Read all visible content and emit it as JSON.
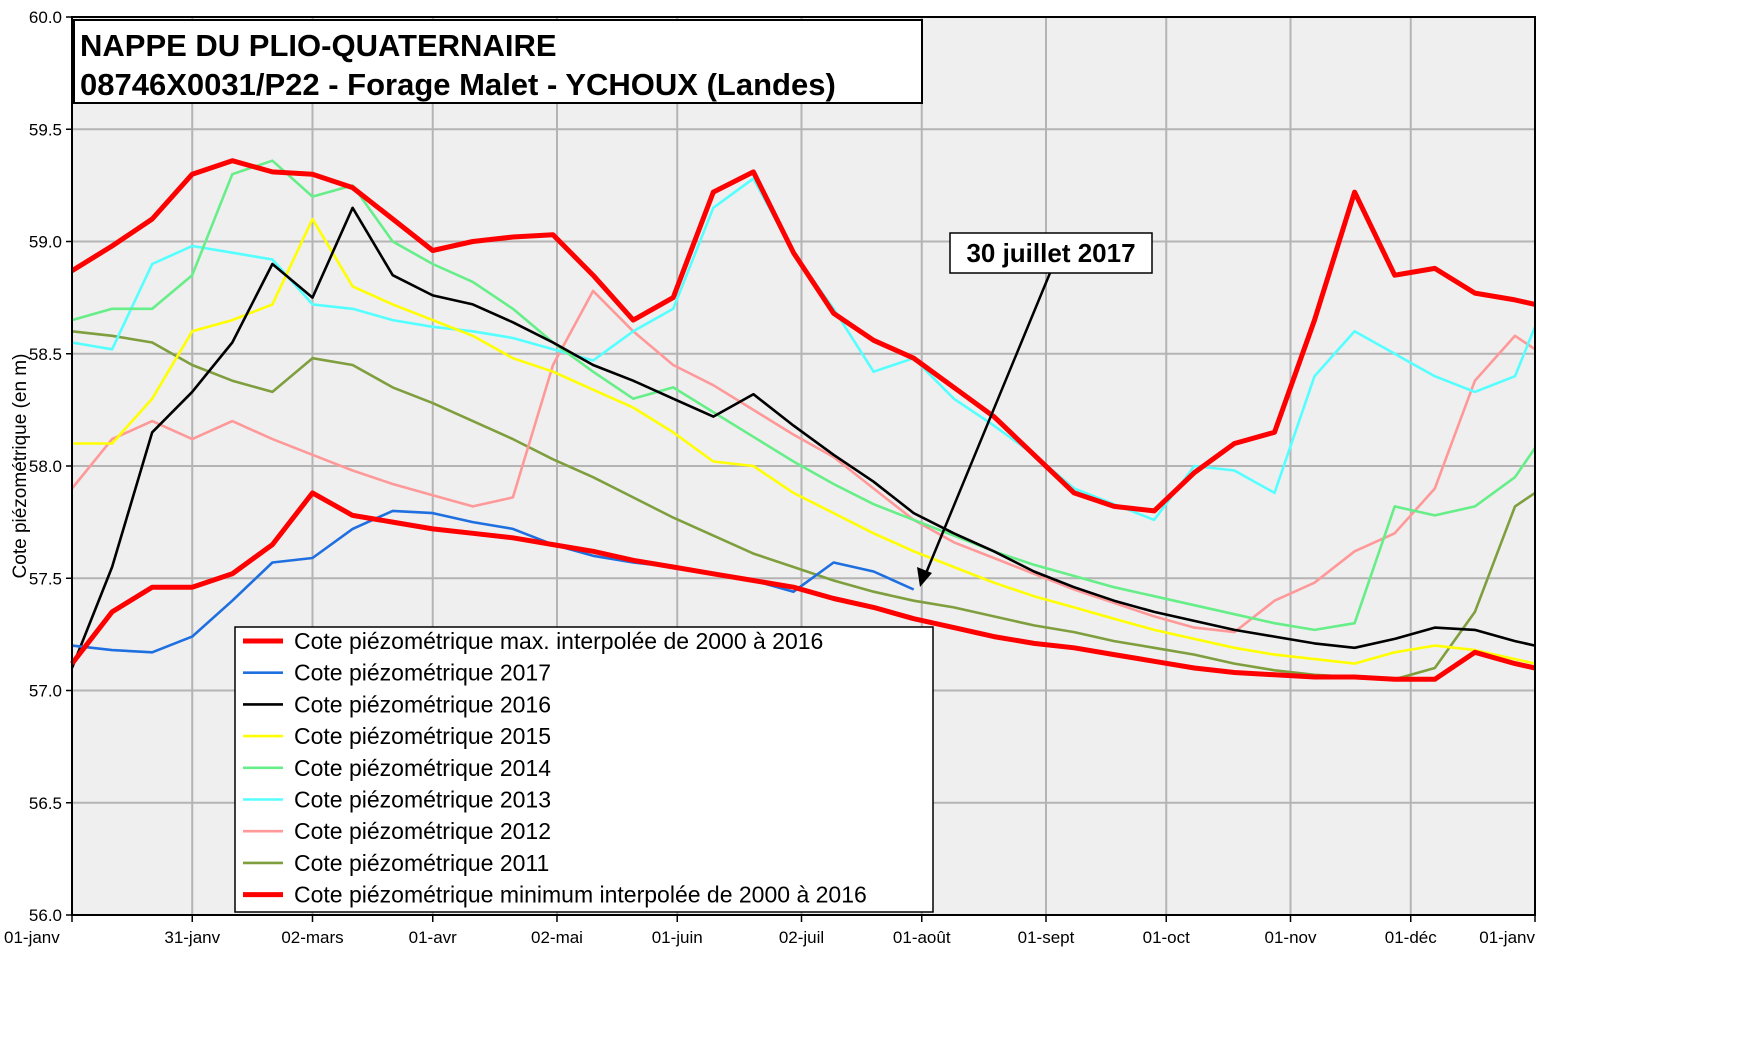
{
  "chart_data": {
    "type": "line",
    "title": "NAPPE DU PLIO-QUATERNAIRE",
    "subtitle": "08746X0031/P22  - Forage Malet - YCHOUX (Landes)",
    "y_label": "Cote piézométrique  (en m)",
    "annotation": "30 juillet 2017",
    "grid": true,
    "xlim": [
      0,
      365
    ],
    "ylim": [
      56,
      60
    ],
    "xticks": [
      {
        "value": 0,
        "label": "01-janv"
      },
      {
        "value": 30,
        "label": "31-janv"
      },
      {
        "value": 60,
        "label": "02-mars"
      },
      {
        "value": 90,
        "label": "01-avr"
      },
      {
        "value": 121,
        "label": "02-mai"
      },
      {
        "value": 151,
        "label": "01-juin"
      },
      {
        "value": 182,
        "label": "02-juil"
      },
      {
        "value": 212,
        "label": "01-août"
      },
      {
        "value": 243,
        "label": "01-sept"
      },
      {
        "value": 273,
        "label": "01-oct"
      },
      {
        "value": 304,
        "label": "01-nov"
      },
      {
        "value": 334,
        "label": "01-déc"
      },
      {
        "value": 365,
        "label": "01-janv"
      }
    ],
    "yticks": [
      {
        "value": 56,
        "label": "56.0"
      },
      {
        "value": 56.5,
        "label": "56.5"
      },
      {
        "value": 57,
        "label": "57.0"
      },
      {
        "value": 57.5,
        "label": "57.5"
      },
      {
        "value": 58,
        "label": "58.0"
      },
      {
        "value": 58.5,
        "label": "58.5"
      },
      {
        "value": 59,
        "label": "59.0"
      },
      {
        "value": 59.5,
        "label": "59.5"
      },
      {
        "value": 60,
        "label": "60.0"
      }
    ],
    "x": [
      0,
      10,
      20,
      30,
      40,
      50,
      60,
      70,
      80,
      90,
      100,
      110,
      120,
      130,
      140,
      150,
      160,
      170,
      180,
      190,
      200,
      210,
      220,
      230,
      240,
      250,
      260,
      270,
      280,
      290,
      300,
      310,
      320,
      330,
      340,
      350,
      360,
      365
    ],
    "series": [
      {
        "name": "Cote piézométrique max. interpolée de 2000 à 2016",
        "color": "#ff0000",
        "values": [
          58.87,
          58.98,
          59.1,
          59.3,
          59.36,
          59.31,
          59.3,
          59.24,
          59.1,
          58.96,
          59.0,
          59.02,
          59.03,
          58.85,
          58.65,
          58.75,
          59.22,
          59.31,
          58.95,
          58.68,
          58.56,
          58.48,
          58.35,
          58.22,
          58.05,
          57.88,
          57.82,
          57.8,
          57.97,
          58.1,
          58.15,
          58.65,
          59.22,
          58.85,
          58.88,
          58.77,
          58.74,
          58.72
        ]
      },
      {
        "name": "Cote piézométrique 2017",
        "color": "#1e6fe0",
        "values": [
          57.2,
          57.18,
          57.17,
          57.24,
          57.4,
          57.57,
          57.59,
          57.72,
          57.8,
          57.79,
          57.75,
          57.72,
          57.65,
          57.6,
          57.57,
          57.55,
          57.52,
          57.49,
          57.44,
          57.57,
          57.53,
          57.45,
          null,
          null,
          null,
          null,
          null,
          null,
          null,
          null,
          null,
          null,
          null,
          null,
          null,
          null,
          null,
          null
        ]
      },
      {
        "name": "Cote piézométrique 2016",
        "color": "#000000",
        "values": [
          57.1,
          57.55,
          58.15,
          58.33,
          58.55,
          58.9,
          58.75,
          59.15,
          58.85,
          58.76,
          58.72,
          58.64,
          58.55,
          58.45,
          58.38,
          58.3,
          58.22,
          58.32,
          58.18,
          58.05,
          57.93,
          57.79,
          57.7,
          57.62,
          57.53,
          57.46,
          57.4,
          57.35,
          57.31,
          57.27,
          57.24,
          57.21,
          57.19,
          57.23,
          57.28,
          57.27,
          57.22,
          57.2
        ]
      },
      {
        "name": "Cote piézométrique 2015",
        "color": "#ffff00",
        "values": [
          58.1,
          58.1,
          58.3,
          58.6,
          58.65,
          58.72,
          59.1,
          58.8,
          58.72,
          58.65,
          58.58,
          58.48,
          58.42,
          58.34,
          58.26,
          58.15,
          58.02,
          58.0,
          57.88,
          57.79,
          57.7,
          57.62,
          57.55,
          57.48,
          57.42,
          57.37,
          57.32,
          57.27,
          57.23,
          57.19,
          57.16,
          57.14,
          57.12,
          57.17,
          57.2,
          57.18,
          57.14,
          57.12
        ]
      },
      {
        "name": "Cote piézométrique 2014",
        "color": "#66ee88",
        "values": [
          58.65,
          58.7,
          58.7,
          58.85,
          59.3,
          59.36,
          59.2,
          59.25,
          59.0,
          58.9,
          58.82,
          58.7,
          58.55,
          58.42,
          58.3,
          58.35,
          58.24,
          58.13,
          58.02,
          57.92,
          57.83,
          57.76,
          57.69,
          57.62,
          57.56,
          57.51,
          57.46,
          57.42,
          57.38,
          57.34,
          57.3,
          57.27,
          57.3,
          57.82,
          57.78,
          57.82,
          57.95,
          58.08
        ]
      },
      {
        "name": "Cote piézométrique 2013",
        "color": "#55ffff",
        "values": [
          58.55,
          58.52,
          58.9,
          58.98,
          58.95,
          58.92,
          58.72,
          58.7,
          58.65,
          58.62,
          58.6,
          58.57,
          58.52,
          58.47,
          58.6,
          58.7,
          59.15,
          59.28,
          58.95,
          58.7,
          58.42,
          58.48,
          58.3,
          58.18,
          58.05,
          57.9,
          57.83,
          57.76,
          58.0,
          57.98,
          57.88,
          58.4,
          58.6,
          58.5,
          58.4,
          58.33,
          58.4,
          58.62
        ]
      },
      {
        "name": "Cote piézométrique 2012",
        "color": "#ff9999",
        "values": [
          57.9,
          58.12,
          58.2,
          58.12,
          58.2,
          58.12,
          58.05,
          57.98,
          57.92,
          57.87,
          57.82,
          57.86,
          58.45,
          58.78,
          58.6,
          58.45,
          58.36,
          58.25,
          58.14,
          58.04,
          57.9,
          57.76,
          57.66,
          57.59,
          57.52,
          57.45,
          57.39,
          57.33,
          57.28,
          57.26,
          57.4,
          57.48,
          57.62,
          57.7,
          57.9,
          58.38,
          58.58,
          58.52
        ]
      },
      {
        "name": "Cote piézométrique 2011",
        "color": "#7f9f3f",
        "values": [
          58.6,
          58.58,
          58.55,
          58.45,
          58.38,
          58.33,
          58.48,
          58.45,
          58.35,
          58.28,
          58.2,
          58.12,
          58.03,
          57.95,
          57.86,
          57.77,
          57.69,
          57.61,
          57.55,
          57.49,
          57.44,
          57.4,
          57.37,
          57.33,
          57.29,
          57.26,
          57.22,
          57.19,
          57.16,
          57.12,
          57.09,
          57.07,
          57.06,
          57.05,
          57.1,
          57.35,
          57.82,
          57.88
        ]
      },
      {
        "name": "Cote piézométrique minimum interpolée de 2000 à 2016",
        "color": "#ff0000",
        "values": [
          57.12,
          57.35,
          57.46,
          57.46,
          57.52,
          57.65,
          57.88,
          57.78,
          57.75,
          57.72,
          57.7,
          57.68,
          57.65,
          57.62,
          57.58,
          57.55,
          57.52,
          57.49,
          57.46,
          57.41,
          57.37,
          57.32,
          57.28,
          57.24,
          57.21,
          57.19,
          57.16,
          57.13,
          57.1,
          57.08,
          57.07,
          57.06,
          57.06,
          57.05,
          57.05,
          57.17,
          57.12,
          57.1
        ]
      }
    ]
  }
}
